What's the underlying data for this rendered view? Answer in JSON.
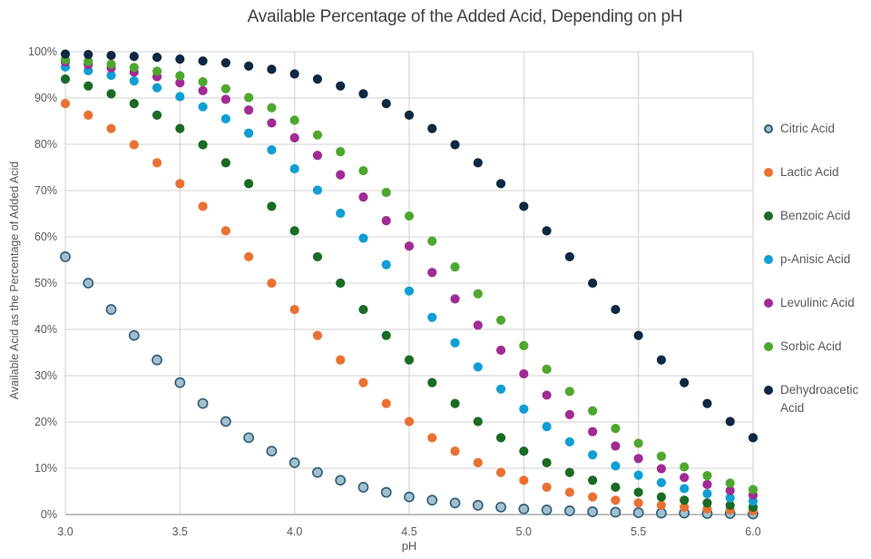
{
  "chart_data": {
    "type": "scatter",
    "title": "Available Percentage of the Added Acid, Depending on pH",
    "xlabel": "pH",
    "ylabel": "Available Acid as the Percentage of Added Acid",
    "xlim": [
      3.0,
      6.0
    ],
    "ylim": [
      0,
      100
    ],
    "x_ticks": [
      "3.0",
      "3.5",
      "4.0",
      "4.5",
      "5.0",
      "5.5",
      "6.0"
    ],
    "y_ticks": [
      "0%",
      "10%",
      "20%",
      "30%",
      "40%",
      "50%",
      "60%",
      "70%",
      "80%",
      "90%",
      "100%"
    ],
    "grid": "both",
    "legend_position": "right",
    "x": [
      3.0,
      3.1,
      3.2,
      3.3,
      3.4,
      3.5,
      3.6,
      3.7,
      3.8,
      3.9,
      4.0,
      4.1,
      4.2,
      4.3,
      4.4,
      4.5,
      4.6,
      4.7,
      4.8,
      4.9,
      5.0,
      5.1,
      5.2,
      5.3,
      5.4,
      5.5,
      5.6,
      5.7,
      5.8,
      5.9,
      6.0
    ],
    "series": [
      {
        "name": "Citric Acid",
        "color": "#A3BFCD",
        "border": "#2D5D78",
        "values": [
          55.7,
          50,
          44.3,
          38.7,
          33.4,
          28.5,
          24,
          20.1,
          16.6,
          13.7,
          11.2,
          9.1,
          7.4,
          5.9,
          4.8,
          3.8,
          3.1,
          2.5,
          2,
          1.6,
          1.2,
          1,
          0.8,
          0.6,
          0.5,
          0.4,
          0.3,
          0.3,
          0.2,
          0.2,
          0.1
        ]
      },
      {
        "name": "Lactic Acid",
        "color": "#E97132",
        "values": [
          88.8,
          86.3,
          83.4,
          79.9,
          76,
          71.5,
          66.6,
          61.3,
          55.7,
          50,
          44.3,
          38.7,
          33.4,
          28.5,
          24,
          20.1,
          16.6,
          13.7,
          11.2,
          9.1,
          7.4,
          5.9,
          4.8,
          3.8,
          3.1,
          2.5,
          2,
          1.6,
          1.2,
          1,
          0.8
        ]
      },
      {
        "name": "Benzoic Acid",
        "color": "#196B24",
        "values": [
          94.1,
          92.6,
          90.9,
          88.8,
          86.3,
          83.4,
          79.9,
          76,
          71.5,
          66.6,
          61.3,
          55.7,
          50,
          44.3,
          38.7,
          33.4,
          28.5,
          24,
          20.1,
          16.6,
          13.7,
          11.2,
          9.1,
          7.4,
          5.9,
          4.8,
          3.8,
          3.1,
          2.5,
          2,
          1.6
        ]
      },
      {
        "name": "p-Anisic Acid",
        "color": "#0F9ED5",
        "values": [
          96.7,
          95.9,
          94.9,
          93.7,
          92.2,
          90.3,
          88.1,
          85.5,
          82.4,
          78.8,
          74.7,
          70.1,
          65.1,
          59.7,
          54,
          48.3,
          42.6,
          37.1,
          31.9,
          27.1,
          22.8,
          19,
          15.7,
          12.9,
          10.5,
          8.5,
          6.9,
          5.6,
          4.5,
          3.6,
          2.9
        ]
      },
      {
        "name": "Levulinic Acid",
        "color": "#A02B93",
        "values": [
          97.8,
          97.2,
          96.5,
          95.6,
          94.6,
          93.3,
          91.6,
          89.7,
          87.4,
          84.6,
          81.4,
          77.6,
          73.4,
          68.6,
          63.5,
          58,
          52.3,
          46.6,
          40.9,
          35.5,
          30.4,
          25.8,
          21.6,
          17.9,
          14.8,
          12.1,
          9.9,
          8,
          6.5,
          5.2,
          4.2
        ]
      },
      {
        "name": "Sorbic Acid",
        "color": "#4EA72E",
        "values": [
          98.3,
          97.9,
          97.3,
          96.6,
          95.8,
          94.8,
          93.5,
          92,
          90.1,
          87.9,
          85.2,
          82,
          78.4,
          74.3,
          69.6,
          64.5,
          59.1,
          53.5,
          47.7,
          42,
          36.5,
          31.4,
          26.6,
          22.4,
          18.6,
          15.4,
          12.6,
          10.3,
          8.4,
          6.8,
          5.4
        ]
      },
      {
        "name": "Dehydroacetic Acid",
        "color": "#0E2841",
        "values": [
          99.5,
          99.4,
          99.2,
          99,
          98.8,
          98.4,
          98,
          97.6,
          96.9,
          96.2,
          95.2,
          94.1,
          92.6,
          90.9,
          88.8,
          86.3,
          83.4,
          79.9,
          76,
          71.5,
          66.6,
          61.3,
          55.7,
          50,
          44.3,
          38.7,
          33.4,
          28.5,
          24,
          20.1,
          16.6
        ]
      }
    ],
    "colors": {
      "background": "#FFFFFF",
      "gridline": "#D9D9D9",
      "axis_line": "#BFBFBF",
      "tick_label": "#595959",
      "title": "#404040",
      "legend_label": "#595959"
    }
  }
}
